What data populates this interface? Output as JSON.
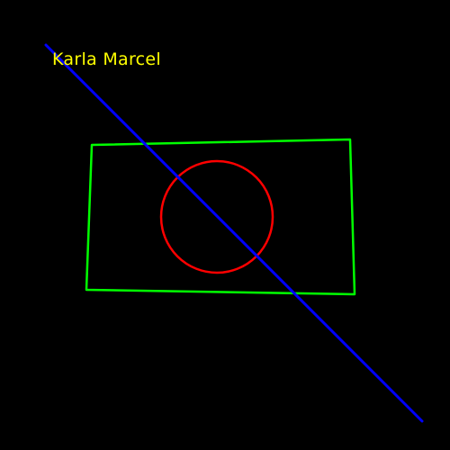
{
  "colors": {
    "background": "#000000",
    "quadrilateral": "#00ff00",
    "circle": "#ff0000",
    "line": "#0000ff",
    "label": "#ffff00"
  },
  "label": {
    "text": "Karla Marcel"
  }
}
